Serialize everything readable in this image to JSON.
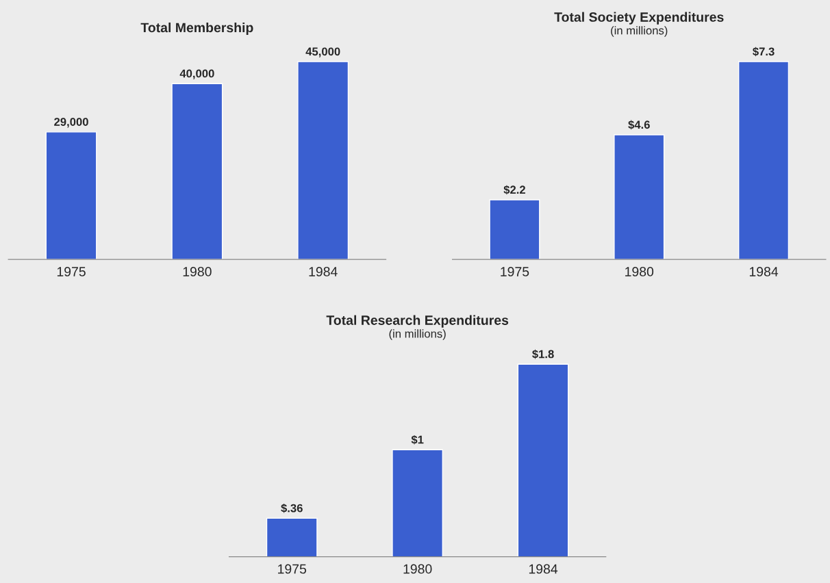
{
  "chart_data": [
    {
      "type": "bar",
      "title": "Total Membership",
      "categories": [
        "1975",
        "1980",
        "1984"
      ],
      "values": [
        29000,
        40000,
        45000
      ],
      "value_labels": [
        "29,000",
        "40,000",
        "45,000"
      ],
      "color": "#3a5fd0",
      "tick_labels": "x"
    },
    {
      "type": "bar",
      "title": "Total Society Expenditures",
      "subtitle": "(in millions)",
      "categories": [
        "1975",
        "1980",
        "1984"
      ],
      "values": [
        2.2,
        4.6,
        7.3
      ],
      "value_labels": [
        "$2.2",
        "$4.6",
        "$7.3"
      ],
      "color": "#3a5fd0",
      "tick_labels": "x"
    },
    {
      "type": "bar",
      "title": "Total Research Expenditures",
      "subtitle": "(in millions)",
      "categories": [
        "1975",
        "1980",
        "1984"
      ],
      "values": [
        0.36,
        1,
        1.8
      ],
      "value_labels": [
        "$.36",
        "$1",
        "$1.8"
      ],
      "color": "#3a5fd0",
      "tick_labels": "x"
    }
  ]
}
